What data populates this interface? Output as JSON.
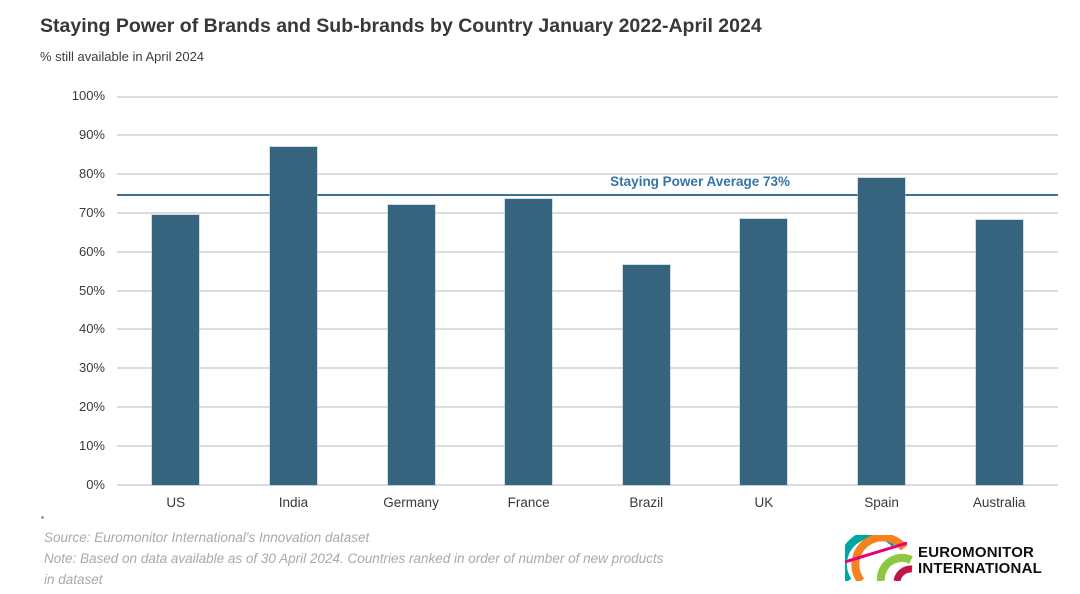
{
  "header": {
    "title": "Staying Power of Brands and Sub-brands by Country January 2022-April 2024",
    "subtitle": "% still available in April 2024"
  },
  "chart_data": {
    "type": "bar",
    "title": "Staying Power of Brands and Sub-brands by Country January 2022-April 2024",
    "subtitle": "% still available in April 2024",
    "categories": [
      "US",
      "India",
      "Germany",
      "France",
      "Brazil",
      "UK",
      "Spain",
      "Australia"
    ],
    "values": [
      69.5,
      87,
      72,
      73.5,
      56.5,
      68.5,
      79,
      68
    ],
    "xlabel": "",
    "ylabel": "",
    "ylim": [
      0,
      100
    ],
    "ytick_step": 10,
    "ytick_suffix": "%",
    "grid": "horizontal",
    "legend": "none",
    "annotations": {
      "average_line": {
        "label": "Staying Power Average 73%",
        "value": 73,
        "drawn_at_pct": 74.5
      }
    }
  },
  "footer": {
    "source": "Source: Euromonitor International's Innovation dataset",
    "note_lines": [
      "Note: Based on data available as of 30 April 2024. Countries ranked in order of number of new products",
      "in dataset"
    ]
  },
  "logo": {
    "line1": "EUROMONITOR",
    "line2": "INTERNATIONAL"
  },
  "colors": {
    "bar": "#36647E",
    "average_line": "#3B719B",
    "average_label": "#3574A8",
    "grid": "#DCDCDC",
    "title_text": "#383838",
    "axis_text": "#3A3A3A",
    "footer_text": "#A9A9A9",
    "logo_teal": "#00A79D",
    "logo_orange": "#F58220",
    "logo_green": "#8DC63F",
    "logo_crimson": "#C01547",
    "logo_magenta": "#E6007E"
  }
}
